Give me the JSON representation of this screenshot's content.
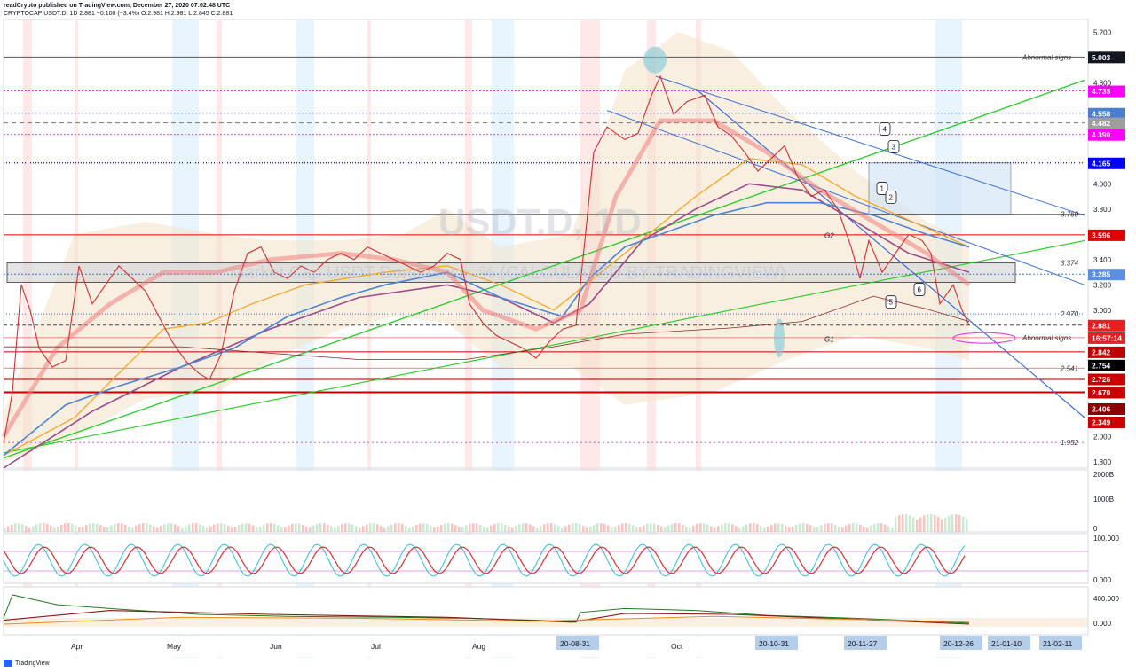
{
  "header": {
    "line1": "readCrypto published on TradingView.com, December 27, 2020 07:02:48 UTC",
    "line2": "CRYPTOCAP:USDT.D, 1D 2.881 −0.100 (−3.4%) O:2.981 H:2.981 L:2.845 C:2.881"
  },
  "footer": {
    "brand": "TradingView"
  },
  "chart_data": {
    "type": "line",
    "title": "",
    "symbol_watermark": "USDT.D, 1D",
    "watermark_subtitle": "Market Cap USDT Dominance, % (CALCULATED BY TRADINGVIEW)",
    "ylim": [
      1.75,
      5.3
    ],
    "y_ticks": [
      "5.200",
      "4.800",
      "4.000",
      "3.800",
      "3.400",
      "3.200",
      "3.000",
      "2.000",
      "1.800"
    ],
    "x_labels": [
      "Apr",
      "May",
      "Jun",
      "Jul",
      "Aug",
      "Oct"
    ],
    "date_badges": [
      "20-08-31",
      "20-10-31",
      "20-11-27",
      "20-12-26",
      "21-01-10",
      "21-02-11"
    ],
    "price_tags": [
      {
        "label": "5.003",
        "value": 5.003,
        "bg": "#131722",
        "fg": "#ffffff"
      },
      {
        "label": "4.735",
        "value": 4.735,
        "bg": "#ff00ff",
        "fg": "#ffffff"
      },
      {
        "label": "4.558",
        "value": 4.558,
        "bg": "#4a7fd0",
        "fg": "#ffffff"
      },
      {
        "label": "4.482",
        "value": 4.482,
        "bg": "#9e9e9e",
        "fg": "#ffffff"
      },
      {
        "label": "4.390",
        "value": 4.39,
        "bg": "#ff00ff",
        "fg": "#ffffff"
      },
      {
        "label": "4.165",
        "value": 4.165,
        "bg": "#0000ff",
        "fg": "#ffffff"
      },
      {
        "label": "3.596",
        "value": 3.596,
        "bg": "#e00000",
        "fg": "#ffffff"
      },
      {
        "label": "3.285",
        "value": 3.285,
        "bg": "#5b8fe0",
        "fg": "#ffffff"
      },
      {
        "label": "2.881",
        "value": 2.881,
        "bg": "#e62020",
        "fg": "#ffffff"
      },
      {
        "label": "16:57:14",
        "value": 2.782,
        "bg": "#e62020",
        "fg": "#ffffff"
      },
      {
        "label": "2.842",
        "value": 2.67,
        "bg": "#c00000",
        "fg": "#ffffff"
      },
      {
        "label": "2.754",
        "value": 2.565,
        "bg": "#000000",
        "fg": "#ffffff"
      },
      {
        "label": "2.726",
        "value": 2.455,
        "bg": "#cc0000",
        "fg": "#ffffff"
      },
      {
        "label": "2.670",
        "value": 2.35,
        "bg": "#cc0000",
        "fg": "#ffffff"
      },
      {
        "label": "2.406",
        "value": 2.22,
        "bg": "#8b0000",
        "fg": "#ffffff"
      },
      {
        "label": "2.349",
        "value": 2.115,
        "bg": "#cc0000",
        "fg": "#ffffff"
      }
    ],
    "level_annotations": [
      {
        "label": "Abnormal signs",
        "value": 5.003
      },
      {
        "label": "3.760",
        "value": 3.76
      },
      {
        "label": "3.374",
        "value": 3.374
      },
      {
        "label": "2.970",
        "value": 2.97
      },
      {
        "label": "Abnormal signs",
        "value": 2.782
      },
      {
        "label": "2.541",
        "value": 2.541
      },
      {
        "label": "1.952",
        "value": 1.952
      }
    ],
    "zone_labels": [
      {
        "label": "G1"
      },
      {
        "label": "G2"
      }
    ],
    "wave_labels": [
      "1",
      "2",
      "3",
      "4",
      "5",
      "6"
    ],
    "price_series": [
      [
        0,
        1.95
      ],
      [
        10,
        2.35
      ],
      [
        20,
        3.2
      ],
      [
        30,
        3.0
      ],
      [
        40,
        2.7
      ],
      [
        55,
        2.55
      ],
      [
        70,
        2.6
      ],
      [
        85,
        3.35
      ],
      [
        100,
        3.05
      ],
      [
        115,
        3.2
      ],
      [
        130,
        3.35
      ],
      [
        145,
        3.25
      ],
      [
        160,
        3.15
      ],
      [
        175,
        2.95
      ],
      [
        190,
        2.75
      ],
      [
        205,
        2.6
      ],
      [
        220,
        2.5
      ],
      [
        232,
        2.45
      ],
      [
        245,
        2.65
      ],
      [
        260,
        3.15
      ],
      [
        275,
        3.45
      ],
      [
        290,
        3.5
      ],
      [
        305,
        3.3
      ],
      [
        320,
        3.25
      ],
      [
        335,
        3.35
      ],
      [
        350,
        3.3
      ],
      [
        365,
        3.4
      ],
      [
        380,
        3.45
      ],
      [
        395,
        3.4
      ],
      [
        410,
        3.5
      ],
      [
        425,
        3.45
      ],
      [
        440,
        3.4
      ],
      [
        455,
        3.35
      ],
      [
        470,
        3.3
      ],
      [
        485,
        3.35
      ],
      [
        500,
        3.45
      ],
      [
        515,
        3.4
      ],
      [
        525,
        3.05
      ],
      [
        540,
        2.9
      ],
      [
        555,
        2.8
      ],
      [
        570,
        2.75
      ],
      [
        585,
        2.7
      ],
      [
        600,
        2.62
      ],
      [
        615,
        2.75
      ],
      [
        630,
        2.85
      ],
      [
        645,
        2.88
      ],
      [
        655,
        3.55
      ],
      [
        665,
        4.25
      ],
      [
        680,
        4.45
      ],
      [
        700,
        4.35
      ],
      [
        715,
        4.4
      ],
      [
        730,
        4.7
      ],
      [
        740,
        4.85
      ],
      [
        755,
        4.55
      ],
      [
        770,
        4.65
      ],
      [
        790,
        4.7
      ],
      [
        805,
        4.45
      ],
      [
        820,
        4.38
      ],
      [
        835,
        4.25
      ],
      [
        850,
        4.1
      ],
      [
        865,
        4.2
      ],
      [
        880,
        4.3
      ],
      [
        895,
        4.05
      ],
      [
        910,
        3.9
      ],
      [
        925,
        3.95
      ],
      [
        940,
        3.8
      ],
      [
        955,
        3.5
      ],
      [
        965,
        3.25
      ],
      [
        975,
        3.55
      ],
      [
        990,
        3.3
      ],
      [
        1005,
        3.45
      ],
      [
        1020,
        3.6
      ],
      [
        1035,
        3.55
      ],
      [
        1045,
        3.45
      ],
      [
        1055,
        3.05
      ],
      [
        1070,
        3.2
      ],
      [
        1080,
        3.0
      ],
      [
        1088,
        2.88
      ]
    ],
    "baseline_ma": [
      [
        0,
        1.9
      ],
      [
        100,
        2.35
      ],
      [
        200,
        2.7
      ],
      [
        300,
        3.0
      ],
      [
        400,
        3.25
      ],
      [
        500,
        3.35
      ],
      [
        560,
        3.25
      ],
      [
        620,
        3.05
      ],
      [
        660,
        3.2
      ],
      [
        720,
        3.7
      ],
      [
        780,
        3.95
      ],
      [
        840,
        4.15
      ],
      [
        900,
        4.1
      ],
      [
        960,
        3.85
      ],
      [
        1020,
        3.6
      ],
      [
        1088,
        3.45
      ]
    ],
    "step_line": [
      [
        0,
        1.85
      ],
      [
        70,
        2.25
      ],
      [
        130,
        2.4
      ],
      [
        200,
        2.55
      ],
      [
        260,
        2.7
      ],
      [
        320,
        2.95
      ],
      [
        380,
        3.1
      ],
      [
        430,
        3.2
      ],
      [
        500,
        3.3
      ],
      [
        560,
        3.1
      ],
      [
        630,
        2.95
      ],
      [
        660,
        3.25
      ],
      [
        700,
        3.5
      ],
      [
        760,
        3.65
      ],
      [
        800,
        3.75
      ],
      [
        860,
        3.85
      ],
      [
        920,
        3.85
      ],
      [
        980,
        3.75
      ],
      [
        1040,
        3.6
      ],
      [
        1088,
        3.5
      ]
    ],
    "volume_panel": {
      "ticks": [
        "2000B",
        "1000B",
        "0"
      ]
    },
    "oscillator_panel": {
      "ticks": [
        "100.000",
        "0.000"
      ]
    },
    "momentum_panel": {
      "ticks": [
        "400.000",
        "0.000"
      ]
    },
    "colors": {
      "price": "#e85a5a",
      "ema_fast": "#4a86d8",
      "ema_slow": "#9c4b8a",
      "ma_orange": "#f5a623",
      "trend_green": "#22cc22",
      "channel_blue": "#3b6fd6"
    }
  }
}
